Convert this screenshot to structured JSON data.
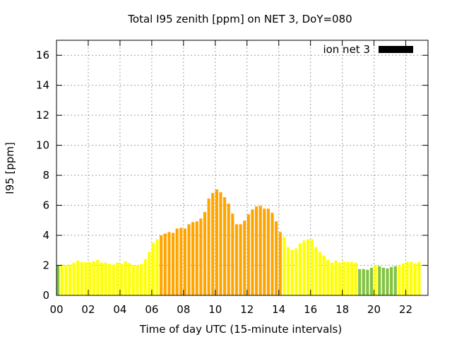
{
  "chart_data": {
    "type": "bar",
    "title": "Total I95 zenith [ppm] on NET 3, DoY=080",
    "xlabel": "Time of day UTC (15-minute intervals)",
    "ylabel": "I95 [ppm]",
    "xlim": [
      0,
      23.4
    ],
    "ylim": [
      0,
      17
    ],
    "x_ticks": [
      "00",
      "02",
      "04",
      "06",
      "08",
      "10",
      "12",
      "14",
      "16",
      "18",
      "20",
      "22"
    ],
    "x_tick_values": [
      0,
      2,
      4,
      6,
      8,
      10,
      12,
      14,
      16,
      18,
      20,
      22
    ],
    "y_ticks": [
      "0",
      "2",
      "4",
      "6",
      "8",
      "10",
      "12",
      "14",
      "16"
    ],
    "y_tick_values": [
      0,
      2,
      4,
      6,
      8,
      10,
      12,
      14,
      16
    ],
    "grid": true,
    "legend": {
      "label": "ion net 3",
      "color": "#000000",
      "placement": "top-right"
    },
    "interval_hours": 0.25,
    "color_scale": {
      "low": "#82c341",
      "mid": "#ffff00",
      "high": "#ffa500",
      "low_below": 2,
      "high_from": 4
    },
    "values": [
      1.98,
      2.05,
      2.0,
      2.05,
      2.18,
      2.32,
      2.22,
      2.22,
      2.22,
      2.27,
      2.36,
      2.18,
      2.18,
      2.1,
      2.05,
      2.18,
      2.1,
      2.27,
      2.15,
      2.0,
      2.0,
      2.1,
      2.41,
      2.9,
      3.5,
      3.74,
      4.0,
      4.12,
      4.22,
      4.17,
      4.45,
      4.5,
      4.45,
      4.74,
      4.88,
      4.93,
      5.12,
      5.55,
      6.45,
      6.82,
      7.06,
      6.87,
      6.54,
      6.11,
      5.45,
      4.74,
      4.74,
      4.98,
      5.4,
      5.73,
      5.92,
      5.97,
      5.78,
      5.78,
      5.5,
      4.93,
      4.22,
      3.89,
      3.22,
      3.03,
      3.13,
      3.46,
      3.65,
      3.74,
      3.74,
      3.22,
      2.89,
      2.65,
      2.37,
      2.18,
      2.32,
      2.18,
      2.27,
      2.23,
      2.23,
      2.18,
      1.75,
      1.75,
      1.7,
      1.84,
      2.0,
      1.94,
      1.84,
      1.8,
      1.89,
      1.94,
      2.0,
      2.13,
      2.23,
      2.23,
      2.13,
      2.23
    ]
  }
}
